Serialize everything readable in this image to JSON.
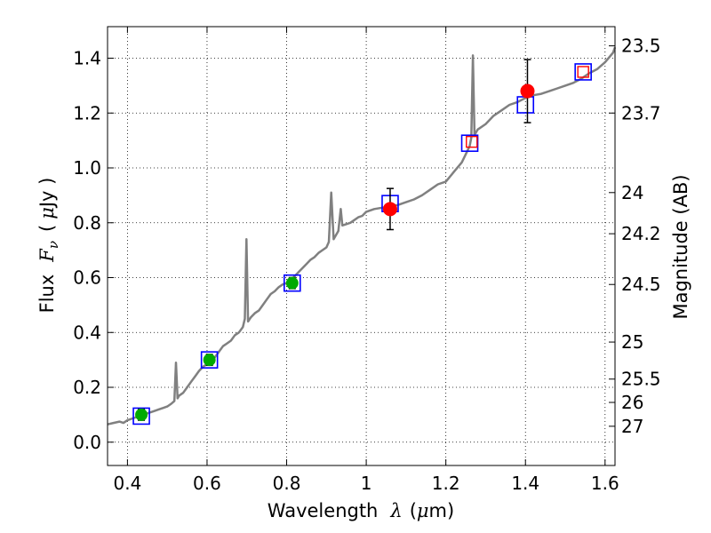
{
  "chart_data": {
    "type": "line",
    "xlabel": {
      "prefix": "Wavelength",
      "symbol": "λ",
      "unit_open": "(",
      "unit_mu": "μ",
      "unit_rest": "m)"
    },
    "ylabel": {
      "prefix": "Flux",
      "symbol": "F",
      "subscript": "ν",
      "unit_open": "(",
      "unit_mu": "μ",
      "unit_rest": "Jy )"
    },
    "y2label": "Magnitude (AB)",
    "xlim": [
      0.35,
      1.625
    ],
    "ylim": [
      -0.085,
      1.515
    ],
    "grid": true,
    "x_ticks": [
      {
        "value": 0.4,
        "label": "0.4"
      },
      {
        "value": 0.6,
        "label": "0.6"
      },
      {
        "value": 0.8,
        "label": "0.8"
      },
      {
        "value": 1.0,
        "label": "1"
      },
      {
        "value": 1.2,
        "label": "1.2"
      },
      {
        "value": 1.4,
        "label": "1.4"
      },
      {
        "value": 1.6,
        "label": "1.6"
      }
    ],
    "y_ticks": [
      {
        "value": 0.0,
        "label": "0.0"
      },
      {
        "value": 0.2,
        "label": "0.2"
      },
      {
        "value": 0.4,
        "label": "0.4"
      },
      {
        "value": 0.6,
        "label": "0.6"
      },
      {
        "value": 0.8,
        "label": "0.8"
      },
      {
        "value": 1.0,
        "label": "1.0"
      },
      {
        "value": 1.2,
        "label": "1.2"
      },
      {
        "value": 1.4,
        "label": "1.4"
      }
    ],
    "magnitude_ticks": [
      {
        "flux": 1.445,
        "label": "23.5"
      },
      {
        "flux": 1.2,
        "label": "23.7"
      },
      {
        "flux": 0.91,
        "label": "24"
      },
      {
        "flux": 0.76,
        "label": "24.2"
      },
      {
        "flux": 0.575,
        "label": "24.5"
      },
      {
        "flux": 0.365,
        "label": "25"
      },
      {
        "flux": 0.23,
        "label": "25.5"
      },
      {
        "flux": 0.145,
        "label": "26"
      },
      {
        "flux": 0.058,
        "label": "27"
      }
    ],
    "spectrum": {
      "name": "model spectrum",
      "color": "#808080",
      "points": [
        [
          0.35,
          0.065
        ],
        [
          0.365,
          0.07
        ],
        [
          0.38,
          0.075
        ],
        [
          0.39,
          0.07
        ],
        [
          0.4,
          0.08
        ],
        [
          0.41,
          0.085
        ],
        [
          0.42,
          0.09
        ],
        [
          0.43,
          0.095
        ],
        [
          0.44,
          0.1
        ],
        [
          0.45,
          0.105
        ],
        [
          0.46,
          0.11
        ],
        [
          0.47,
          0.115
        ],
        [
          0.48,
          0.12
        ],
        [
          0.49,
          0.125
        ],
        [
          0.5,
          0.13
        ],
        [
          0.51,
          0.14
        ],
        [
          0.518,
          0.15
        ],
        [
          0.522,
          0.29
        ],
        [
          0.526,
          0.16
        ],
        [
          0.53,
          0.17
        ],
        [
          0.54,
          0.18
        ],
        [
          0.55,
          0.2
        ],
        [
          0.56,
          0.22
        ],
        [
          0.57,
          0.24
        ],
        [
          0.58,
          0.26
        ],
        [
          0.59,
          0.275
        ],
        [
          0.6,
          0.285
        ],
        [
          0.61,
          0.295
        ],
        [
          0.62,
          0.31
        ],
        [
          0.63,
          0.33
        ],
        [
          0.64,
          0.35
        ],
        [
          0.65,
          0.36
        ],
        [
          0.66,
          0.37
        ],
        [
          0.67,
          0.39
        ],
        [
          0.68,
          0.4
        ],
        [
          0.69,
          0.42
        ],
        [
          0.695,
          0.45
        ],
        [
          0.699,
          0.74
        ],
        [
          0.703,
          0.44
        ],
        [
          0.71,
          0.455
        ],
        [
          0.72,
          0.47
        ],
        [
          0.73,
          0.48
        ],
        [
          0.74,
          0.5
        ],
        [
          0.75,
          0.52
        ],
        [
          0.76,
          0.54
        ],
        [
          0.77,
          0.55
        ],
        [
          0.78,
          0.565
        ],
        [
          0.79,
          0.575
        ],
        [
          0.8,
          0.58
        ],
        [
          0.81,
          0.59
        ],
        [
          0.82,
          0.605
        ],
        [
          0.83,
          0.62
        ],
        [
          0.84,
          0.635
        ],
        [
          0.85,
          0.65
        ],
        [
          0.86,
          0.665
        ],
        [
          0.87,
          0.675
        ],
        [
          0.88,
          0.69
        ],
        [
          0.89,
          0.7
        ],
        [
          0.9,
          0.71
        ],
        [
          0.906,
          0.73
        ],
        [
          0.912,
          0.91
        ],
        [
          0.918,
          0.74
        ],
        [
          0.93,
          0.77
        ],
        [
          0.936,
          0.85
        ],
        [
          0.94,
          0.79
        ],
        [
          0.95,
          0.795
        ],
        [
          0.96,
          0.8
        ],
        [
          0.97,
          0.81
        ],
        [
          0.98,
          0.82
        ],
        [
          0.99,
          0.825
        ],
        [
          1.0,
          0.84
        ],
        [
          1.02,
          0.85
        ],
        [
          1.04,
          0.855
        ],
        [
          1.06,
          0.86
        ],
        [
          1.08,
          0.865
        ],
        [
          1.1,
          0.875
        ],
        [
          1.12,
          0.885
        ],
        [
          1.14,
          0.9
        ],
        [
          1.16,
          0.92
        ],
        [
          1.18,
          0.94
        ],
        [
          1.2,
          0.95
        ],
        [
          1.22,
          0.985
        ],
        [
          1.24,
          1.02
        ],
        [
          1.25,
          1.05
        ],
        [
          1.26,
          1.08
        ],
        [
          1.264,
          1.11
        ],
        [
          1.268,
          1.41
        ],
        [
          1.272,
          1.12
        ],
        [
          1.28,
          1.14
        ],
        [
          1.3,
          1.16
        ],
        [
          1.32,
          1.19
        ],
        [
          1.34,
          1.21
        ],
        [
          1.36,
          1.23
        ],
        [
          1.38,
          1.24
        ],
        [
          1.4,
          1.255
        ],
        [
          1.42,
          1.265
        ],
        [
          1.44,
          1.27
        ],
        [
          1.46,
          1.28
        ],
        [
          1.48,
          1.29
        ],
        [
          1.5,
          1.3
        ],
        [
          1.52,
          1.31
        ],
        [
          1.54,
          1.325
        ],
        [
          1.56,
          1.345
        ],
        [
          1.58,
          1.36
        ],
        [
          1.6,
          1.385
        ],
        [
          1.62,
          1.42
        ],
        [
          1.625,
          1.44
        ]
      ]
    },
    "model_points": {
      "name": "model band fluxes",
      "marker": "open-square",
      "edge_color": "#0000ff",
      "points": [
        {
          "x": 0.435,
          "y": 0.095
        },
        {
          "x": 0.606,
          "y": 0.3
        },
        {
          "x": 0.814,
          "y": 0.58
        },
        {
          "x": 1.06,
          "y": 0.87
        },
        {
          "x": 1.26,
          "y": 1.09
        },
        {
          "x": 1.4,
          "y": 1.23
        },
        {
          "x": 1.545,
          "y": 1.35
        }
      ]
    },
    "observed_optical": {
      "name": "optical photometry",
      "marker": "circle",
      "color": "#00aa00",
      "points": [
        {
          "x": 0.435,
          "y": 0.1,
          "err": 0.02
        },
        {
          "x": 0.606,
          "y": 0.3,
          "err": 0.02
        },
        {
          "x": 0.814,
          "y": 0.58,
          "err": 0.02
        }
      ]
    },
    "observed_nir": {
      "name": "near-infrared photometry",
      "marker": "circle",
      "color": "#ff0000",
      "points": [
        {
          "x": 1.06,
          "y": 0.85,
          "err": 0.075
        },
        {
          "x": 1.405,
          "y": 1.28,
          "err": 0.115
        }
      ]
    },
    "predicted_open": {
      "name": "model predictions",
      "marker": "open-square",
      "color": "#ff0000",
      "points": [
        {
          "x": 1.265,
          "y": 1.095
        },
        {
          "x": 1.545,
          "y": 1.35
        }
      ]
    }
  }
}
